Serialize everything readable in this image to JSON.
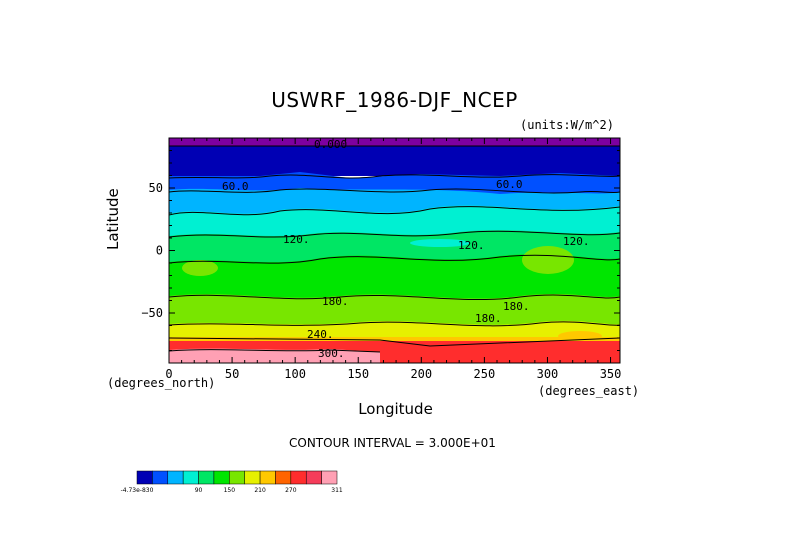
{
  "chart_data": {
    "type": "heatmap",
    "title": "USWRF_1986-DJF_NCEP",
    "units_label": "(units:W/m^2)",
    "xlabel": "Longitude",
    "ylabel": "Latitude",
    "x_units": "(degrees_north)",
    "y_units": "(degrees_east)",
    "xlim": [
      0,
      357.5
    ],
    "ylim": [
      -90,
      90
    ],
    "x_ticks": [
      "0",
      "50",
      "100",
      "150",
      "200",
      "250",
      "300",
      "350"
    ],
    "y_ticks": [
      "50",
      "0",
      "-50"
    ],
    "contour_interval": "CONTOUR INTERVAL = 3.000E+01",
    "contour_labels": [
      "0.000",
      "60.0",
      "60.0",
      "120.",
      "120.",
      "120.",
      "180.",
      "180.",
      "180.",
      "240.",
      "300."
    ],
    "colorbar_labels": [
      "-4.73e-830",
      "90",
      "150",
      "210",
      "270",
      "311"
    ],
    "colorbar_colors": [
      "#0000b4",
      "#0050ff",
      "#00b4ff",
      "#00f0d2",
      "#00e664",
      "#00e600",
      "#78e600",
      "#e6f000",
      "#ffc800",
      "#ff6400",
      "#ff2d2d",
      "#f53c5a",
      "#ffa0b4"
    ],
    "colors": {
      "band_0": "#7d00a0",
      "band_30": "#0000b4",
      "band_60": "#0050ff",
      "band_90": "#00b4ff",
      "band_120": "#00f0d2",
      "band_150": "#00e664",
      "band_180": "#00e600",
      "band_210": "#78e600",
      "band_240": "#e6f000",
      "band_270": "#ffc800",
      "band_300": "#ff2d2d",
      "band_pink": "#ffa0b4"
    }
  }
}
